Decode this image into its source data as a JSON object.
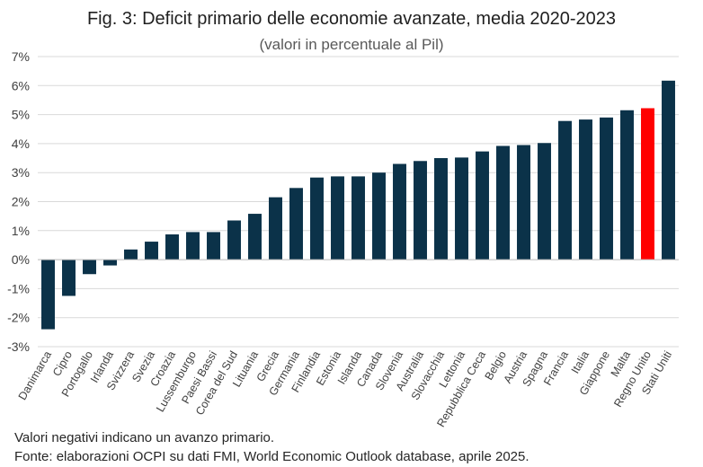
{
  "chart_data": {
    "type": "bar",
    "title": "Fig. 3: Deficit primario delle economie avanzate, media 2020-2023",
    "subtitle": "(valori in percentuale al Pil)",
    "categories": [
      "Danimarca",
      "Cipro",
      "Portogallo",
      "Irlanda",
      "Svizzera",
      "Svezia",
      "Croazia",
      "Lussemburgo",
      "Paesi Bassi",
      "Corea del Sud",
      "Lituania",
      "Grecia",
      "Germania",
      "Finlandia",
      "Estonia",
      "Islanda",
      "Canada",
      "Slovenia",
      "Australia",
      "Slovacchia",
      "Lettonia",
      "Repubblica Ceca",
      "Belgio",
      "Austria",
      "Spagna",
      "Francia",
      "Italia",
      "Giappone",
      "Malta",
      "Regno Unito",
      "Stati Uniti"
    ],
    "values": [
      -2.4,
      -1.25,
      -0.5,
      -0.2,
      0.35,
      0.62,
      0.87,
      0.95,
      0.95,
      1.35,
      1.58,
      2.15,
      2.47,
      2.83,
      2.87,
      2.87,
      3.0,
      3.3,
      3.4,
      3.5,
      3.52,
      3.73,
      3.92,
      3.95,
      4.02,
      4.78,
      4.83,
      4.9,
      5.15,
      5.22,
      6.17
    ],
    "highlight": "Regno Unito",
    "bar_color": "#0b3249",
    "highlight_color": "#ff0000",
    "ylim": [
      -3,
      7
    ],
    "yticks": [
      -3,
      -2,
      -1,
      0,
      1,
      2,
      3,
      4,
      5,
      6,
      7
    ],
    "ytick_labels": [
      "-3%",
      "-2%",
      "-1%",
      "0%",
      "1%",
      "2%",
      "3%",
      "4%",
      "5%",
      "6%",
      "7%"
    ],
    "grid": true,
    "xlabel": "",
    "ylabel": ""
  },
  "notes": {
    "line1": "Valori negativi indicano un avanzo primario.",
    "line2": "Fonte: elaborazioni OCPI su dati FMI, World Economic Outlook database, aprile 2025."
  }
}
